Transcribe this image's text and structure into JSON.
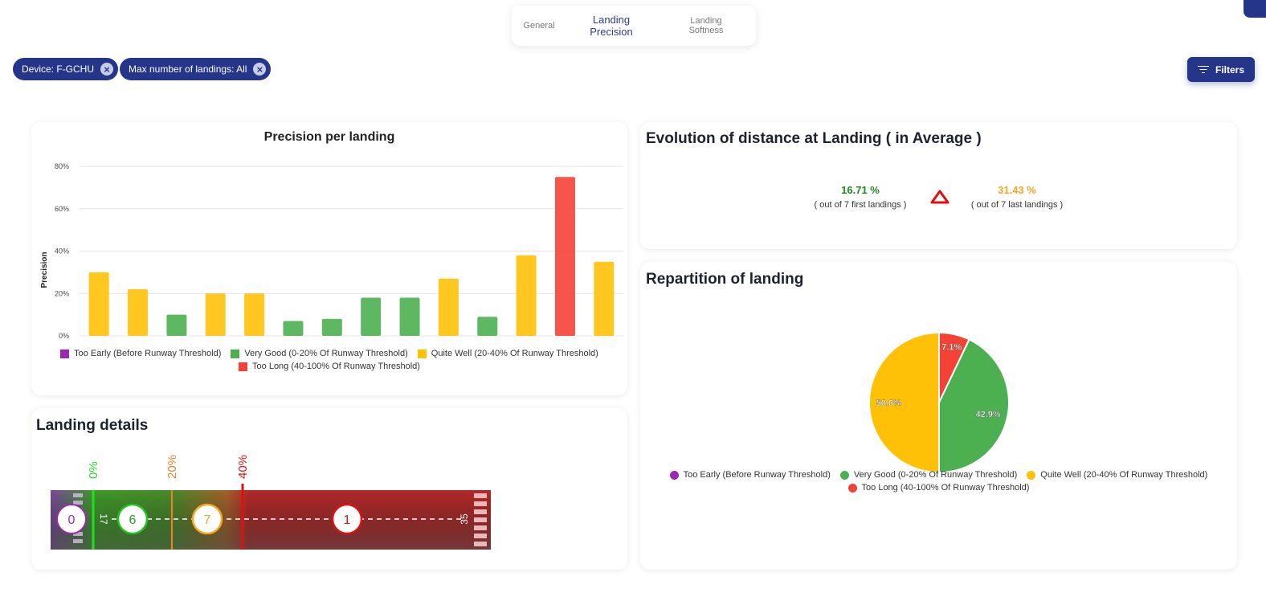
{
  "tabs": [
    {
      "label": "General",
      "active": false
    },
    {
      "label": "Landing Precision",
      "active": true
    },
    {
      "label": "Landing Softness",
      "active": false
    }
  ],
  "chips": [
    {
      "label": "Device: F-GCHU"
    },
    {
      "label": "Max number of landings: All"
    }
  ],
  "filters_label": "Filters",
  "colors": {
    "too_early": "#9c27b0",
    "very_good": "#4caf50",
    "quite_well": "#ffc107",
    "too_long": "#f44336",
    "accent": "#24358a"
  },
  "precision_chart": {
    "title": "Precision per landing",
    "ylabel": "Precision",
    "legend": [
      {
        "label": "Too Early (Before Runway Threshold)",
        "color": "#9c27b0"
      },
      {
        "label": "Very Good (0-20% Of Runway Threshold)",
        "color": "#4caf50"
      },
      {
        "label": "Quite Well (20-40% Of Runway Threshold)",
        "color": "#ffc107"
      },
      {
        "label": "Too Long (40-100% Of Runway Threshold)",
        "color": "#f44336"
      }
    ]
  },
  "evolution": {
    "title": "Evolution of distance at Landing ( in Average )",
    "first_value": "16.71 %",
    "first_label": "( out of 7 first landings )",
    "last_value": "31.43 %",
    "last_label": "( out of 7 last landings )",
    "trend_icon": "triangle-up-icon"
  },
  "repartition": {
    "title": "Repartition of landing",
    "legend": [
      {
        "label": "Too Early (Before Runway Threshold)",
        "color": "#9c27b0"
      },
      {
        "label": "Very Good (0-20% Of Runway Threshold)",
        "color": "#4caf50"
      },
      {
        "label": "Quite Well (20-40% Of Runway Threshold)",
        "color": "#ffc107"
      },
      {
        "label": "Too Long (40-100% Of Runway Threshold)",
        "color": "#f44336"
      }
    ]
  },
  "landing_details": {
    "title": "Landing details",
    "markers": [
      "0%",
      "20%",
      "40%"
    ],
    "runway_start": "17",
    "runway_end": "35",
    "counts": [
      {
        "value": "0",
        "color": "#9c27b0"
      },
      {
        "value": "6",
        "color": "#22c022"
      },
      {
        "value": "7",
        "color": "#f5a623"
      },
      {
        "value": "1",
        "color": "#e01010"
      }
    ]
  },
  "chart_data": [
    {
      "type": "bar",
      "title": "Precision per landing",
      "ylabel": "Precision",
      "ylim": [
        0,
        80
      ],
      "yticks": [
        "0%",
        "20%",
        "40%",
        "60%",
        "80%"
      ],
      "values": [
        30,
        22,
        10,
        20,
        20,
        7,
        8,
        18,
        18,
        27,
        9,
        38,
        75,
        35
      ],
      "classes": [
        "quite_well",
        "quite_well",
        "very_good",
        "quite_well",
        "quite_well",
        "very_good",
        "very_good",
        "very_good",
        "very_good",
        "quite_well",
        "very_good",
        "quite_well",
        "too_long",
        "quite_well"
      ],
      "grid": true,
      "legend_position": "bottom"
    },
    {
      "type": "pie",
      "labels": [
        "Too Long (40-100% Of Runway Threshold)",
        "Very Good (0-20% Of Runway Threshold)",
        "Quite Well (20-40% Of Runway Threshold)"
      ],
      "values": [
        7.1,
        42.9,
        50.0
      ],
      "value_labels": [
        "7.1%",
        "42.9%",
        "50.0%"
      ],
      "colors": [
        "#f44336",
        "#4caf50",
        "#ffc107"
      ],
      "legend_position": "bottom"
    }
  ]
}
